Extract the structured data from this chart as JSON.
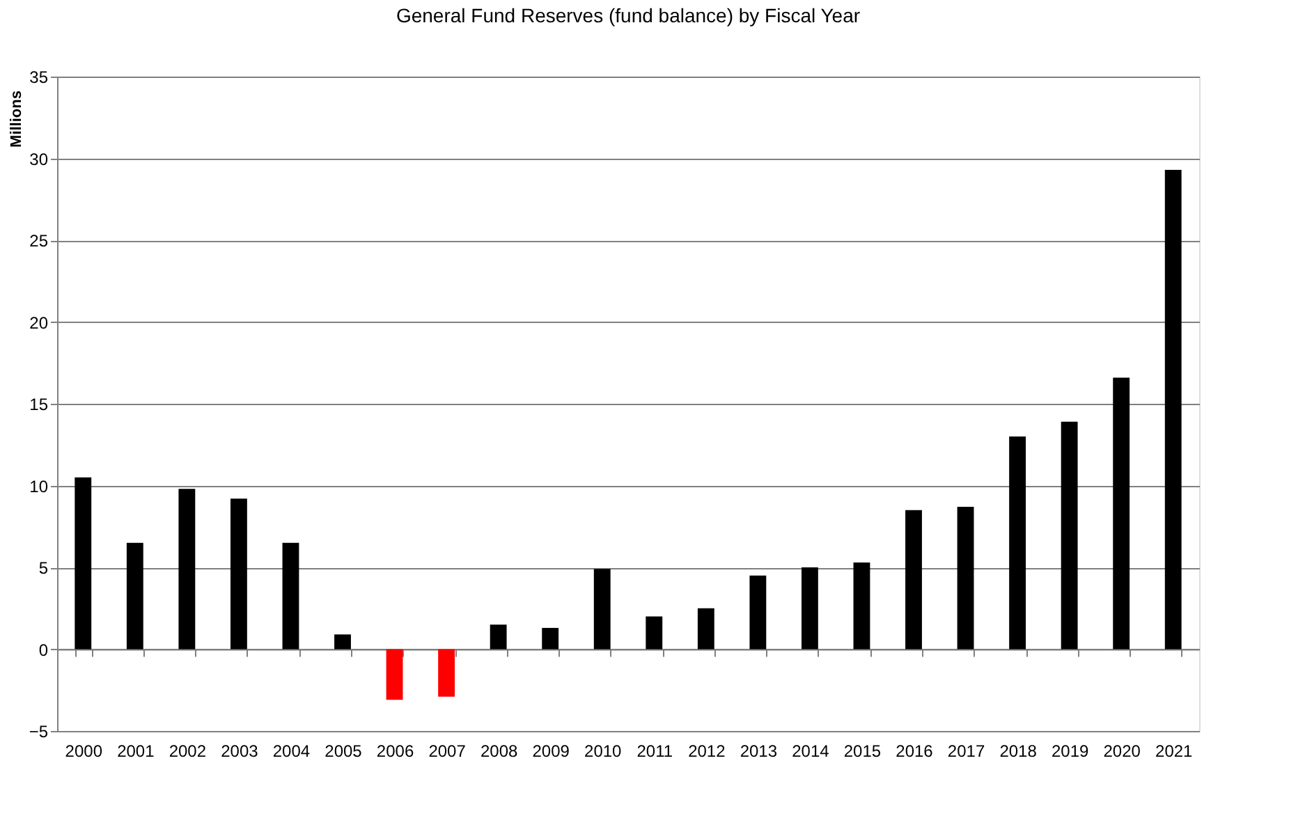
{
  "chart_data": {
    "type": "bar",
    "title": "General Fund Reserves (fund balance) by Fiscal Year",
    "ylabel": "Millions",
    "categories": [
      "2000",
      "2001",
      "2002",
      "2003",
      "2004",
      "2005",
      "2006",
      "2007",
      "2008",
      "2009",
      "2010",
      "2011",
      "2012",
      "2013",
      "2014",
      "2015",
      "2016",
      "2017",
      "2018",
      "2019",
      "2020",
      "2021"
    ],
    "values": [
      10.5,
      6.5,
      9.8,
      9.2,
      6.5,
      0.9,
      -3.1,
      -2.9,
      1.5,
      1.3,
      4.9,
      2.0,
      2.5,
      4.5,
      5.0,
      5.3,
      8.5,
      8.7,
      13.0,
      13.9,
      16.6,
      29.3
    ],
    "colors": [
      "#000000",
      "#000000",
      "#000000",
      "#000000",
      "#000000",
      "#000000",
      "#ff0000",
      "#ff0000",
      "#000000",
      "#000000",
      "#000000",
      "#000000",
      "#000000",
      "#000000",
      "#000000",
      "#000000",
      "#000000",
      "#000000",
      "#000000",
      "#000000",
      "#000000",
      "#000000"
    ],
    "ylim": [
      -5,
      35
    ],
    "yticks": [
      -5,
      0,
      5,
      10,
      15,
      20,
      25,
      30,
      35
    ],
    "grid": "y"
  }
}
